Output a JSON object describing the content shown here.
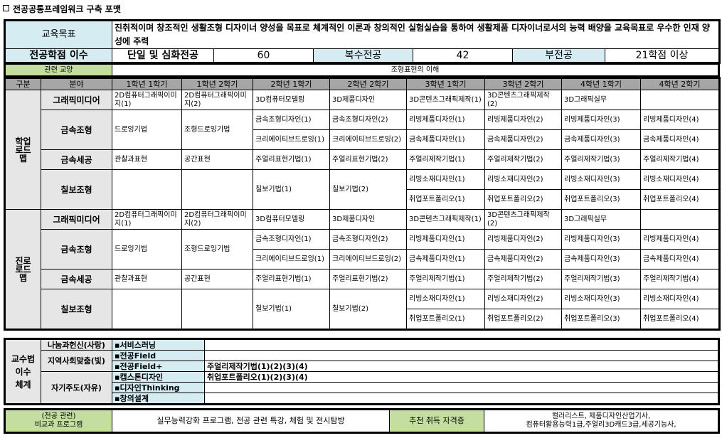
{
  "title": "전공공통프레임워크 구축 포맷",
  "goal": {
    "label": "교육목표",
    "text": "진취적이며 창조적인 생활조형 디자이너 양성을 목표로 체계적인 이론과 창의적인 실험실습을 통하여 생활제품 디자이너로서의 능력 배양을 교육목표로 우수한 인재 양성에 주력"
  },
  "credits": {
    "label": "전공학점 이수",
    "single_label": "단일 및 심화전공",
    "single": "60",
    "double_label": "복수전공",
    "double": "42",
    "minor_label": "부전공",
    "minor": "21학점 이상"
  },
  "related": {
    "label": "관련 교양",
    "value": "조형표현의 이해"
  },
  "roadmap_header": [
    "구분",
    "분야",
    "1학년 1학기",
    "1학년 2학기",
    "2학년 1학기",
    "2학년 2학기",
    "3학년 1학기",
    "3학년 2학기",
    "4학년 1학기",
    "4학년 2학기"
  ],
  "sections": [
    {
      "label": "학업 로드맵",
      "fields": [
        {
          "name": "그래픽미디어",
          "rows": [
            [
              "2D컴퓨터그래픽이미지(1)",
              "2D컴퓨터그래픽이미지(2)",
              "3D컴퓨터모델링",
              "3D제품디자인",
              "3D콘텐츠그래픽제작(1)",
              "3D콘텐츠그래픽제작(2)",
              "3D그래픽실무",
              ""
            ]
          ]
        },
        {
          "name": "금속조형",
          "rows": [
            [
              "드로잉기법",
              "조형드로잉기법",
              "금속조형디자인(1)",
              "금속조형디자인(2)",
              "리빙제품디자인(1)",
              "리빙제품디자인(2)",
              "리빙제품디자인(3)",
              "리빙제품디자인(4)"
            ],
            [
              null,
              null,
              "크리에이티브드로잉(1)",
              "크리에이티브드로잉(2)",
              "금속제품디자인(1)",
              "금속제품디자인(2)",
              "금속제품디자인(3)",
              "금속제품디자인(4)"
            ]
          ]
        },
        {
          "name": "금속세공",
          "rows": [
            [
              "관찰과표현",
              "공간표현",
              "주얼리표현기법(1)",
              "주얼리표현기법(2)",
              "주얼리제작기법(1)",
              "주얼리제작기법(2)",
              "주얼리제작기법(3)",
              "주얼리제작기법(4)"
            ]
          ]
        },
        {
          "name": "칠보조형",
          "rows": [
            [
              "",
              "",
              "칠보기법(1)",
              "칠보기법(2)",
              "리빙소재디자인(1)",
              "리빙소재디자인(2)",
              "리빙소재디자인(3)",
              "리빙소재디자인(4)"
            ],
            [
              null,
              null,
              null,
              null,
              "취업포트폴리오(1)",
              "취업포트폴리오(2)",
              "취업포트폴리오(3)",
              "취업포트폴리오(4)"
            ]
          ]
        }
      ]
    },
    {
      "label": "진로 로드맵",
      "fields": [
        {
          "name": "그래픽미디어",
          "rows": [
            [
              "2D컴퓨터그래픽이미지(1)",
              "2D컴퓨터그래픽이미지(2)",
              "3D컴퓨터모델링",
              "3D제품디자인",
              "3D콘텐츠그래픽제작(1)",
              "3D콘텐츠그래픽제작(2)",
              "3D그래픽실무",
              ""
            ]
          ]
        },
        {
          "name": "금속조형",
          "rows": [
            [
              "드로잉기법",
              "조형드로잉기법",
              "금속조형디자인(1)",
              "금속조형디자인(2)",
              "리빙제품디자인(1)",
              "리빙제품디자인(2)",
              "리빙제품디자인(3)",
              "리빙제품디자인(4)"
            ],
            [
              null,
              null,
              "크리에이티브드로잉(1)",
              "크리에이티브드로잉(2)",
              "금속제품디자인(1)",
              "금속제품디자인(2)",
              "금속제품디자인(3)",
              "금속제품디자인(4)"
            ]
          ]
        },
        {
          "name": "금속세공",
          "rows": [
            [
              "관찰과표현",
              "공간표현",
              "주얼리표현기법(1)",
              "주얼리표현기법(2)",
              "주얼리제작기법(1)",
              "주얼리제작기법(2)",
              "주얼리제작기법(3)",
              "주얼리제작기법(4)"
            ]
          ]
        },
        {
          "name": "칠보조형",
          "rows": [
            [
              "",
              "",
              "칠보기법(1)",
              "칠보기법(2)",
              "리빙소재디자인(1)",
              "리빙소재디자인(2)",
              "리빙소재디자인(3)",
              "리빙소재디자인(4)"
            ],
            [
              null,
              null,
              null,
              null,
              "취업포트폴리오(1)",
              "취업포트폴리오(2)",
              "취업포트폴리오(3)",
              "취업포트폴리오(4)"
            ]
          ]
        }
      ]
    }
  ],
  "pedagogy": {
    "label": "교수법 이수 체계",
    "groups": [
      {
        "name": "나눔과헌신(사랑)",
        "items": [
          {
            "method": "▪서비스러닝",
            "courses": ""
          }
        ]
      },
      {
        "name": "지역사회맞춤(빛)",
        "items": [
          {
            "method": "▪전공Field",
            "courses": ""
          },
          {
            "method": "▪전공Field+",
            "courses": "주얼리제작기법(1)(2)(3)(4)"
          }
        ]
      },
      {
        "name": "자기주도(자유)",
        "items": [
          {
            "method": "▪캡스톤디자인",
            "courses": "취업포트폴리오(1)(2)(3)(4)"
          },
          {
            "method": "▪디자인Thinking",
            "courses": ""
          },
          {
            "method": "▪창의설계",
            "courses": ""
          }
        ]
      }
    ]
  },
  "extra": {
    "label_line1": "(전공 관련)",
    "label_line2": "비교과 프로그램",
    "value": "실무능력강화 프로그램, 전공 관련 특강,  체험 및 전시탐방",
    "cert_label": "추천 취득 자격증",
    "cert_line1": "컬러리스트, 제품디자인산업기사,",
    "cert_line2": "컴퓨터활용능력1급,주얼리3D캐드3급,세공기능사,"
  }
}
